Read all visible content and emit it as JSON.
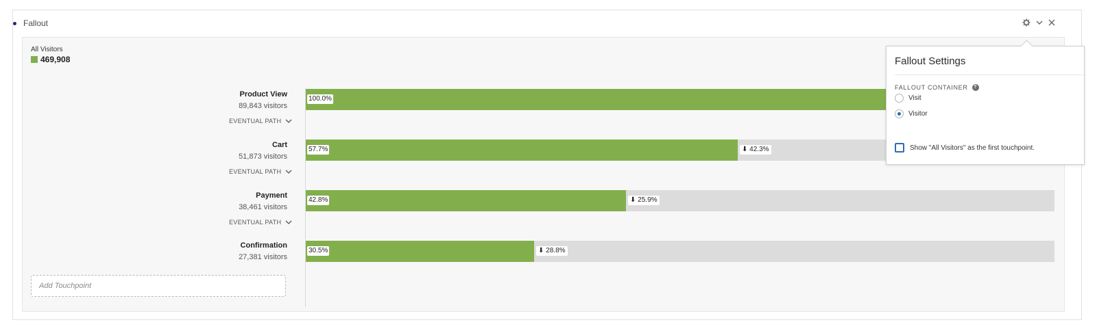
{
  "panel": {
    "title": "Fallout",
    "icons": [
      "gear-icon",
      "chevron-down-icon",
      "close-icon"
    ]
  },
  "segment": {
    "name": "All Visitors",
    "count": "469,908",
    "color": "#82af4b"
  },
  "touchpoints": [
    {
      "name": "Product View",
      "visitors": "89,843 visitors",
      "percent": 100.0,
      "percent_label": "100.0%",
      "drop": "",
      "eventual_path": "EVENTUAL PATH"
    },
    {
      "name": "Cart",
      "visitors": "51,873 visitors",
      "percent": 57.7,
      "percent_label": "57.7%",
      "drop": "42.3%",
      "eventual_path": "EVENTUAL PATH"
    },
    {
      "name": "Payment",
      "visitors": "38,461 visitors",
      "percent": 42.8,
      "percent_label": "42.8%",
      "drop": "25.9%",
      "eventual_path": "EVENTUAL PATH"
    },
    {
      "name": "Confirmation",
      "visitors": "27,381 visitors",
      "percent": 30.5,
      "percent_label": "30.5%",
      "drop": "28.8%",
      "eventual_path": ""
    }
  ],
  "add_touchpoint": {
    "placeholder": "Add Touchpoint"
  },
  "settings": {
    "title": "Fallout Settings",
    "container_label": "FALLOUT CONTAINER",
    "options": [
      {
        "label": "Visit",
        "checked": false
      },
      {
        "label": "Visitor",
        "checked": true
      }
    ],
    "show_all_visitors_label": "Show \"All Visitors\" as the first touchpoint.",
    "show_all_visitors_checked": false
  },
  "colors": {
    "bar_fill": "#82af4b",
    "bar_track": "#dcdcdc",
    "radio_accent": "#2b6cb8"
  }
}
